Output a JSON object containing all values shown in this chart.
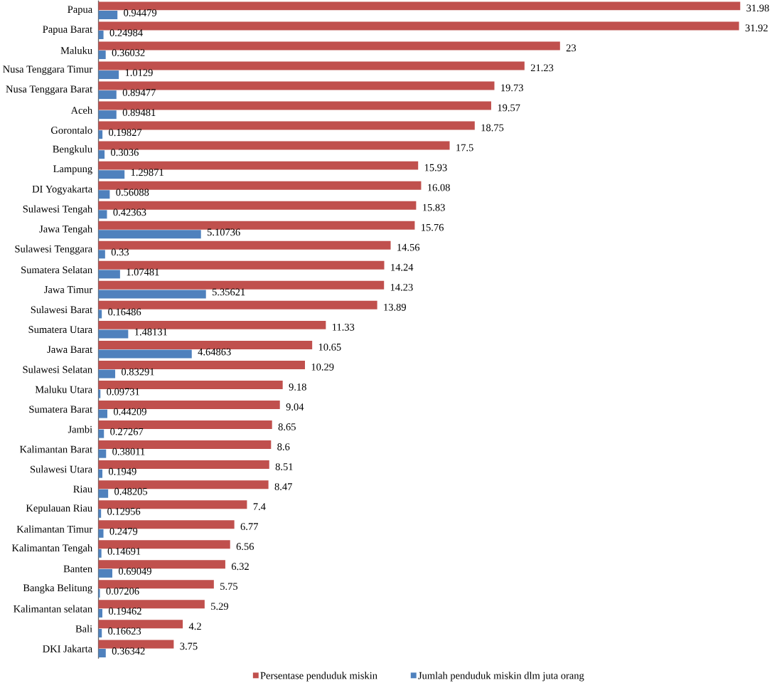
{
  "chart_data": {
    "type": "bar",
    "orientation": "horizontal",
    "categories": [
      "Papua",
      "Papua Barat",
      "Maluku",
      "Nusa Tenggara Timur",
      "Nusa Tenggara Barat",
      "Aceh",
      "Gorontalo",
      "Bengkulu",
      "Lampung",
      "DI Yogyakarta",
      "Sulawesi Tengah",
      "Jawa Tengah",
      "Sulawesi Tenggara",
      "Sumatera Selatan",
      "Jawa Timur",
      "Sulawesi Barat",
      "Sumatera Utara",
      "Jawa Barat",
      "Sulawesi Selatan",
      "Maluku Utara",
      "Sumatera Barat",
      "Jambi",
      "Kalimantan Barat",
      "Sulawesi Utara",
      "Riau",
      "Kepulauan Riau",
      "Kalimantan Timur",
      "Kalimantan Tengah",
      "Banten",
      "Bangka Belitung",
      "Kalimantan selatan",
      "Bali",
      "DKI Jakarta"
    ],
    "series": [
      {
        "name": "Persentase penduduk miskin",
        "color": "#c0504d",
        "values": [
          31.98,
          31.92,
          23,
          21.23,
          19.73,
          19.57,
          18.75,
          17.5,
          15.93,
          16.08,
          15.83,
          15.76,
          14.56,
          14.24,
          14.23,
          13.89,
          11.33,
          10.65,
          10.29,
          9.18,
          9.04,
          8.65,
          8.6,
          8.51,
          8.47,
          7.4,
          6.77,
          6.56,
          6.32,
          5.75,
          5.29,
          4.2,
          3.75
        ]
      },
      {
        "name": "Jumlah penduduk miskin dlm juta orang",
        "color": "#4f81bd",
        "values": [
          0.94479,
          0.24984,
          0.36032,
          1.0129,
          0.89477,
          0.89481,
          0.19827,
          0.3036,
          1.29871,
          0.56088,
          0.42363,
          5.10736,
          0.33,
          1.07481,
          5.35621,
          0.16486,
          1.48131,
          4.64863,
          0.83291,
          0.09731,
          0.44209,
          0.27267,
          0.38011,
          0.1949,
          0.48205,
          0.12956,
          0.2479,
          0.14691,
          0.69049,
          0.07206,
          0.19462,
          0.16623,
          0.36342
        ]
      }
    ],
    "tick_labels": "y",
    "data_labels": true,
    "legend": "bottom"
  }
}
